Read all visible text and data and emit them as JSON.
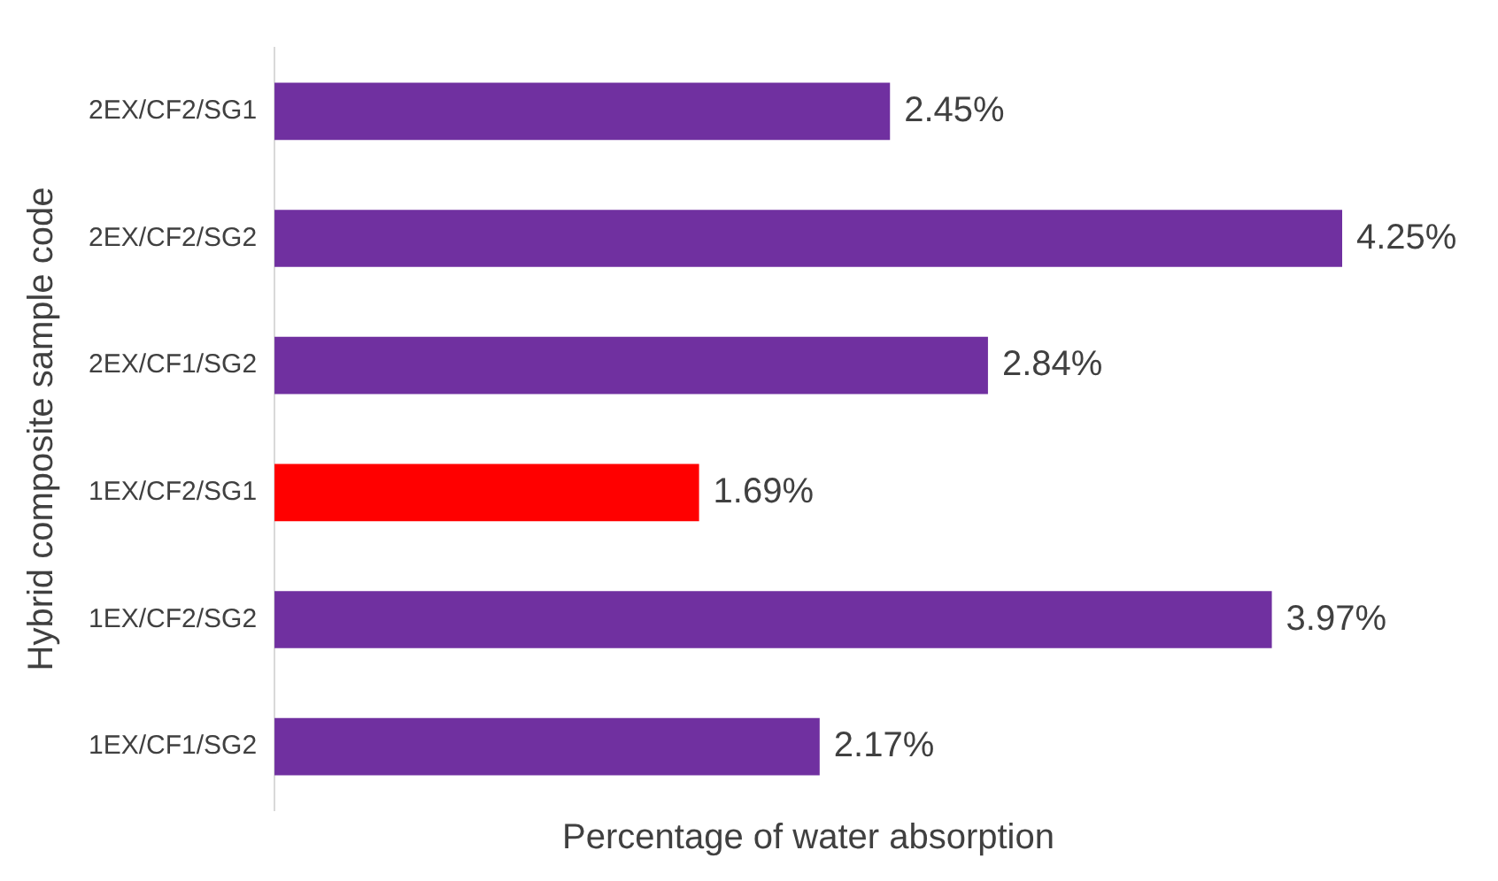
{
  "chart_data": {
    "type": "bar",
    "orientation": "horizontal",
    "xlabel": "Percentage of water absorption",
    "ylabel": "Hybrid composite sample code",
    "categories": [
      "2EX/CF2/SG1",
      "2EX/CF2/SG2",
      "2EX/CF1/SG2",
      "1EX/CF2/SG1",
      "1EX/CF2/SG2",
      "1EX/CF1/SG2"
    ],
    "values": [
      2.45,
      4.25,
      2.84,
      1.69,
      3.97,
      2.17
    ],
    "colors": [
      "#7030a0",
      "#7030a0",
      "#7030a0",
      "#ff0000",
      "#7030a0",
      "#7030a0"
    ],
    "value_labels": [
      "2.45%",
      "4.25%",
      "2.84%",
      "1.69%",
      "3.97%",
      "2.17%"
    ],
    "tick_labels": "y",
    "grid": false,
    "legend": false
  }
}
